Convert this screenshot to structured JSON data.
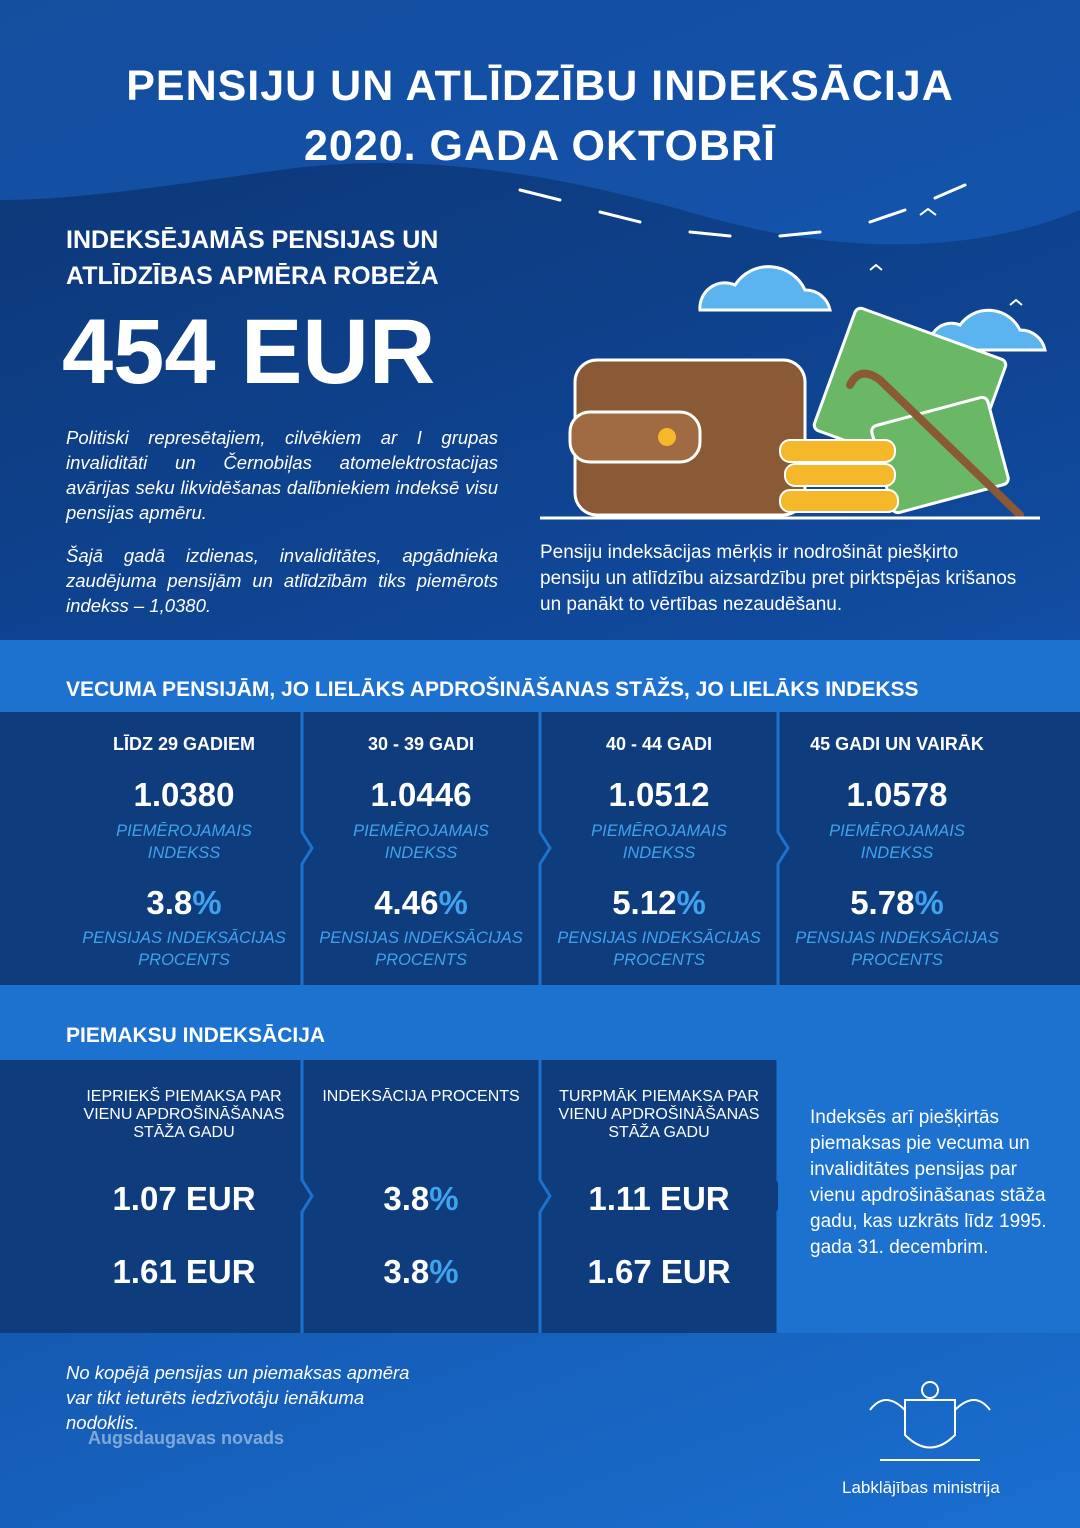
{
  "header": {
    "title_line1": "PENSIJU UN ATLĪDZĪBU INDEKSĀCIJA",
    "title_line2": "2020. GADA OKTOBRĪ"
  },
  "threshold": {
    "heading_line1": "INDEKSĒJAMĀS PENSIJAS UN",
    "heading_line2": "ATLĪDZĪBAS APMĒRA ROBEŽA",
    "amount": "454 EUR",
    "note_1": "Politiski represētajiem, cilvēkiem ar I grupas invaliditāti un Černobiļas atomelektrostacijas avārijas seku likvidēšanas dalībniekiem indeksē visu pensijas apmēru.",
    "note_2": "Šajā gadā izdienas, invaliditātes, apgādnieka zaudējuma pensijām un atlīdzībām tiks piemērots indekss – 1,0380.",
    "goal": "Pensiju indeksācijas mērķis ir nodrošināt piešķirto pensiju un atlīdzību aizsardzību pret pirktspējas krišanos un panākt to vērtības nezaudēšanu."
  },
  "age_table": {
    "title": "VECUMA PENSIJĀM, JO LIELĀKS APDROŠINĀŠANAS STĀŽS, JO LIELĀKS INDEKSS",
    "percent_sign": "%",
    "columns": [
      {
        "label": "LĪDZ 29 GADIEM",
        "index": "1.0380",
        "index_caption": "PIEMĒROJAMAIS INDEKSS",
        "percent": "3.8",
        "percent_caption": "PENSIJAS INDEKSĀCIJAS PROCENTS"
      },
      {
        "label": "30 - 39 GADI",
        "index": "1.0446",
        "index_caption": "PIEMĒROJAMAIS INDEKSS",
        "percent": "4.46",
        "percent_caption": "PENSIJAS INDEKSĀCIJAS PROCENTS"
      },
      {
        "label": "40 - 44 GADI",
        "index": "1.0512",
        "index_caption": "PIEMĒROJAMAIS INDEKSS",
        "percent": "5.12",
        "percent_caption": "PENSIJAS INDEKSĀCIJAS PROCENTS"
      },
      {
        "label": "45 GADI UN VAIRĀK",
        "index": "1.0578",
        "index_caption": "PIEMĒROJAMAIS INDEKSS",
        "percent": "5.78",
        "percent_caption": "PENSIJAS INDEKSĀCIJAS PROCENTS"
      }
    ]
  },
  "supplement_table": {
    "title": "PIEMAKSU INDEKSĀCIJA",
    "percent_sign": "%",
    "columns": [
      {
        "header": "IEPRIEKŠ PIEMAKSA PAR VIENU APDROŠINĀŠANAS STĀŽA GADU",
        "rows": [
          "1.07 EUR",
          "1.61 EUR"
        ]
      },
      {
        "header": "INDEKSĀCIJA PROCENTS",
        "rows": [
          "3.8",
          "3.8"
        ]
      },
      {
        "header": "TURPMĀK PIEMAKSA PAR VIENU APDROŠINĀŠANAS STĀŽA GADU",
        "rows": [
          "1.11 EUR",
          "1.67 EUR"
        ]
      }
    ],
    "note": "Indeksēs arī piešķirtās piemaksas pie vecuma un invaliditātes pensijas par vienu apdrošināšanas stāža gadu, kas uzkrāts līdz 1995. gada 31. decembrim."
  },
  "footer": {
    "note": "No kopējā pensijas un piemaksas apmēra var tikt ieturēts iedzīvotāju ienākuma nodoklis.",
    "watermark": "Augsdaugavas novads",
    "logo_caption": "Labklājības ministrija"
  }
}
